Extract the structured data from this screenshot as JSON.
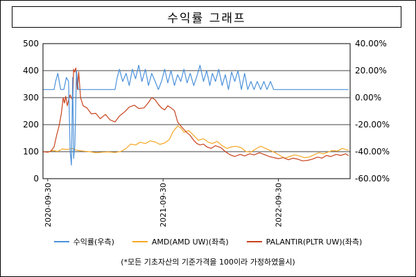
{
  "title": "수익률 그래프",
  "note": "(*모든 기초자산의 기준가격을 100이라 가정하였을시)",
  "colors": {
    "return": "#4a90d9",
    "amd": "#f5a623",
    "pltr": "#c8411b",
    "grid": "#000000"
  },
  "chart_data": {
    "type": "line",
    "title": "수익률 그래프",
    "x_ticks": [
      "2020-09-30",
      "2021-09-30",
      "2022-09-30"
    ],
    "x_range": [
      "2020-09-15",
      "2023-05-15"
    ],
    "y_left": {
      "ticks": [
        "0",
        "100",
        "200",
        "300",
        "400",
        "500"
      ],
      "range": [
        0,
        500
      ]
    },
    "y_right": {
      "ticks": [
        "40.00%",
        "20.00%",
        "0.00%",
        "-20.00%",
        "-40.00%",
        "-60.00%"
      ],
      "range": [
        -60,
        40
      ],
      "unit": "%"
    },
    "grid": "horizontal",
    "legend_position": "bottom",
    "series": [
      {
        "name": "수익률(우측)",
        "axis": "right",
        "color": "#4a90d9",
        "points": [
          [
            "2020-09-15",
            6
          ],
          [
            "2020-10-20",
            6
          ],
          [
            "2020-10-25",
            12
          ],
          [
            "2020-11-01",
            18
          ],
          [
            "2020-11-10",
            6
          ],
          [
            "2020-11-20",
            6
          ],
          [
            "2020-11-28",
            15
          ],
          [
            "2020-12-05",
            12
          ],
          [
            "2020-12-10",
            -40
          ],
          [
            "2020-12-14",
            -50
          ],
          [
            "2020-12-18",
            15
          ],
          [
            "2020-12-21",
            -45
          ],
          [
            "2020-12-25",
            -35
          ],
          [
            "2020-12-30",
            20
          ],
          [
            "2021-01-05",
            6
          ],
          [
            "2021-02-10",
            6
          ],
          [
            "2021-05-01",
            6
          ],
          [
            "2021-05-08",
            15
          ],
          [
            "2021-05-15",
            21
          ],
          [
            "2021-05-25",
            12
          ],
          [
            "2021-06-05",
            18
          ],
          [
            "2021-06-15",
            9
          ],
          [
            "2021-06-25",
            21
          ],
          [
            "2021-07-05",
            14
          ],
          [
            "2021-07-15",
            24
          ],
          [
            "2021-07-25",
            12
          ],
          [
            "2021-08-05",
            21
          ],
          [
            "2021-08-15",
            9
          ],
          [
            "2021-08-25",
            18
          ],
          [
            "2021-09-05",
            12
          ],
          [
            "2021-09-15",
            6
          ],
          [
            "2021-09-25",
            12
          ],
          [
            "2021-10-05",
            21
          ],
          [
            "2021-10-15",
            11
          ],
          [
            "2021-10-25",
            20
          ],
          [
            "2021-11-05",
            9
          ],
          [
            "2021-11-15",
            17
          ],
          [
            "2021-11-25",
            12
          ],
          [
            "2021-12-05",
            21
          ],
          [
            "2021-12-15",
            11
          ],
          [
            "2021-12-25",
            18
          ],
          [
            "2022-01-05",
            9
          ],
          [
            "2022-01-15",
            16
          ],
          [
            "2022-01-25",
            24
          ],
          [
            "2022-02-05",
            12
          ],
          [
            "2022-02-15",
            20
          ],
          [
            "2022-02-25",
            9
          ],
          [
            "2022-03-05",
            18
          ],
          [
            "2022-03-15",
            12
          ],
          [
            "2022-03-25",
            21
          ],
          [
            "2022-04-05",
            9
          ],
          [
            "2022-04-15",
            17
          ],
          [
            "2022-04-25",
            6
          ],
          [
            "2022-05-05",
            19
          ],
          [
            "2022-05-15",
            12
          ],
          [
            "2022-05-25",
            20
          ],
          [
            "2022-06-05",
            6
          ],
          [
            "2022-06-15",
            18
          ],
          [
            "2022-06-25",
            6
          ],
          [
            "2022-07-05",
            12
          ],
          [
            "2022-07-15",
            6
          ],
          [
            "2022-07-25",
            12
          ],
          [
            "2022-08-05",
            6
          ],
          [
            "2022-08-15",
            12
          ],
          [
            "2022-08-25",
            6
          ],
          [
            "2022-09-05",
            12
          ],
          [
            "2022-09-15",
            6
          ],
          [
            "2022-10-01",
            6
          ],
          [
            "2023-05-10",
            6
          ]
        ]
      },
      {
        "name": "AMD(AMD UW)(좌측)",
        "axis": "left",
        "color": "#f5a623",
        "points": [
          [
            "2020-09-15",
            100
          ],
          [
            "2020-10-01",
            98
          ],
          [
            "2020-10-15",
            104
          ],
          [
            "2020-11-01",
            101
          ],
          [
            "2020-11-15",
            110
          ],
          [
            "2020-12-01",
            108
          ],
          [
            "2020-12-15",
            112
          ],
          [
            "2021-01-01",
            105
          ],
          [
            "2021-01-20",
            102
          ],
          [
            "2021-02-10",
            100
          ],
          [
            "2021-03-01",
            96
          ],
          [
            "2021-03-20",
            98
          ],
          [
            "2021-04-10",
            99
          ],
          [
            "2021-05-01",
            97
          ],
          [
            "2021-05-20",
            101
          ],
          [
            "2021-06-05",
            112
          ],
          [
            "2021-06-20",
            128
          ],
          [
            "2021-07-05",
            125
          ],
          [
            "2021-07-20",
            135
          ],
          [
            "2021-08-05",
            130
          ],
          [
            "2021-08-20",
            140
          ],
          [
            "2021-09-05",
            136
          ],
          [
            "2021-09-20",
            127
          ],
          [
            "2021-10-05",
            132
          ],
          [
            "2021-10-20",
            145
          ],
          [
            "2021-11-01",
            175
          ],
          [
            "2021-11-15",
            195
          ],
          [
            "2021-11-25",
            188
          ],
          [
            "2021-12-05",
            172
          ],
          [
            "2021-12-20",
            178
          ],
          [
            "2022-01-05",
            160
          ],
          [
            "2022-01-20",
            142
          ],
          [
            "2022-02-05",
            148
          ],
          [
            "2022-02-20",
            135
          ],
          [
            "2022-03-05",
            130
          ],
          [
            "2022-03-20",
            138
          ],
          [
            "2022-04-05",
            122
          ],
          [
            "2022-04-20",
            112
          ],
          [
            "2022-05-05",
            118
          ],
          [
            "2022-05-20",
            120
          ],
          [
            "2022-06-05",
            114
          ],
          [
            "2022-06-20",
            100
          ],
          [
            "2022-07-05",
            98
          ],
          [
            "2022-07-20",
            110
          ],
          [
            "2022-08-05",
            120
          ],
          [
            "2022-08-20",
            112
          ],
          [
            "2022-09-05",
            104
          ],
          [
            "2022-09-20",
            96
          ],
          [
            "2022-10-05",
            86
          ],
          [
            "2022-10-20",
            76
          ],
          [
            "2022-11-05",
            82
          ],
          [
            "2022-11-20",
            88
          ],
          [
            "2022-12-05",
            84
          ],
          [
            "2022-12-20",
            78
          ],
          [
            "2023-01-05",
            80
          ],
          [
            "2023-01-20",
            88
          ],
          [
            "2023-02-05",
            96
          ],
          [
            "2023-02-20",
            92
          ],
          [
            "2023-03-05",
            98
          ],
          [
            "2023-03-20",
            104
          ],
          [
            "2023-04-05",
            102
          ],
          [
            "2023-04-20",
            112
          ],
          [
            "2023-05-10",
            105
          ]
        ]
      },
      {
        "name": "PALANTIR(PLTR UW)(좌측)",
        "axis": "left",
        "color": "#c8411b",
        "points": [
          [
            "2020-09-15",
            100
          ],
          [
            "2020-09-30",
            98
          ],
          [
            "2020-10-10",
            102
          ],
          [
            "2020-10-20",
            118
          ],
          [
            "2020-10-28",
            160
          ],
          [
            "2020-11-05",
            195
          ],
          [
            "2020-11-12",
            240
          ],
          [
            "2020-11-18",
            300
          ],
          [
            "2020-11-22",
            280
          ],
          [
            "2020-11-26",
            305
          ],
          [
            "2020-12-01",
            270
          ],
          [
            "2020-12-06",
            296
          ],
          [
            "2020-12-10",
            310
          ],
          [
            "2020-12-14",
            300
          ],
          [
            "2020-12-18",
            290
          ],
          [
            "2020-12-21",
            405
          ],
          [
            "2020-12-24",
            395
          ],
          [
            "2020-12-28",
            410
          ],
          [
            "2021-01-02",
            330
          ],
          [
            "2021-01-06",
            395
          ],
          [
            "2021-01-12",
            300
          ],
          [
            "2021-01-20",
            270
          ],
          [
            "2021-02-01",
            262
          ],
          [
            "2021-02-15",
            240
          ],
          [
            "2021-03-01",
            242
          ],
          [
            "2021-03-15",
            222
          ],
          [
            "2021-04-01",
            238
          ],
          [
            "2021-04-15",
            218
          ],
          [
            "2021-05-01",
            210
          ],
          [
            "2021-05-15",
            232
          ],
          [
            "2021-06-01",
            248
          ],
          [
            "2021-06-15",
            265
          ],
          [
            "2021-07-01",
            272
          ],
          [
            "2021-07-15",
            260
          ],
          [
            "2021-08-01",
            262
          ],
          [
            "2021-08-15",
            282
          ],
          [
            "2021-08-25",
            300
          ],
          [
            "2021-09-05",
            292
          ],
          [
            "2021-09-15",
            275
          ],
          [
            "2021-09-25",
            262
          ],
          [
            "2021-10-05",
            255
          ],
          [
            "2021-10-15",
            270
          ],
          [
            "2021-10-25",
            262
          ],
          [
            "2021-11-05",
            252
          ],
          [
            "2021-11-15",
            210
          ],
          [
            "2021-11-25",
            195
          ],
          [
            "2021-12-05",
            182
          ],
          [
            "2021-12-15",
            170
          ],
          [
            "2021-12-25",
            160
          ],
          [
            "2022-01-05",
            142
          ],
          [
            "2022-01-15",
            130
          ],
          [
            "2022-01-25",
            125
          ],
          [
            "2022-02-05",
            128
          ],
          [
            "2022-02-15",
            118
          ],
          [
            "2022-03-01",
            112
          ],
          [
            "2022-03-15",
            122
          ],
          [
            "2022-04-01",
            115
          ],
          [
            "2022-04-15",
            100
          ],
          [
            "2022-05-01",
            88
          ],
          [
            "2022-05-15",
            82
          ],
          [
            "2022-06-01",
            90
          ],
          [
            "2022-06-15",
            84
          ],
          [
            "2022-07-01",
            92
          ],
          [
            "2022-07-15",
            88
          ],
          [
            "2022-08-01",
            96
          ],
          [
            "2022-08-15",
            90
          ],
          [
            "2022-09-01",
            82
          ],
          [
            "2022-09-15",
            78
          ],
          [
            "2022-10-01",
            74
          ],
          [
            "2022-10-15",
            78
          ],
          [
            "2022-11-01",
            70
          ],
          [
            "2022-11-15",
            76
          ],
          [
            "2022-12-01",
            72
          ],
          [
            "2022-12-15",
            66
          ],
          [
            "2023-01-01",
            68
          ],
          [
            "2023-01-15",
            72
          ],
          [
            "2023-02-01",
            80
          ],
          [
            "2023-02-15",
            76
          ],
          [
            "2023-03-01",
            86
          ],
          [
            "2023-03-15",
            82
          ],
          [
            "2023-04-01",
            90
          ],
          [
            "2023-04-15",
            86
          ],
          [
            "2023-05-01",
            92
          ],
          [
            "2023-05-10",
            85
          ]
        ]
      }
    ]
  }
}
